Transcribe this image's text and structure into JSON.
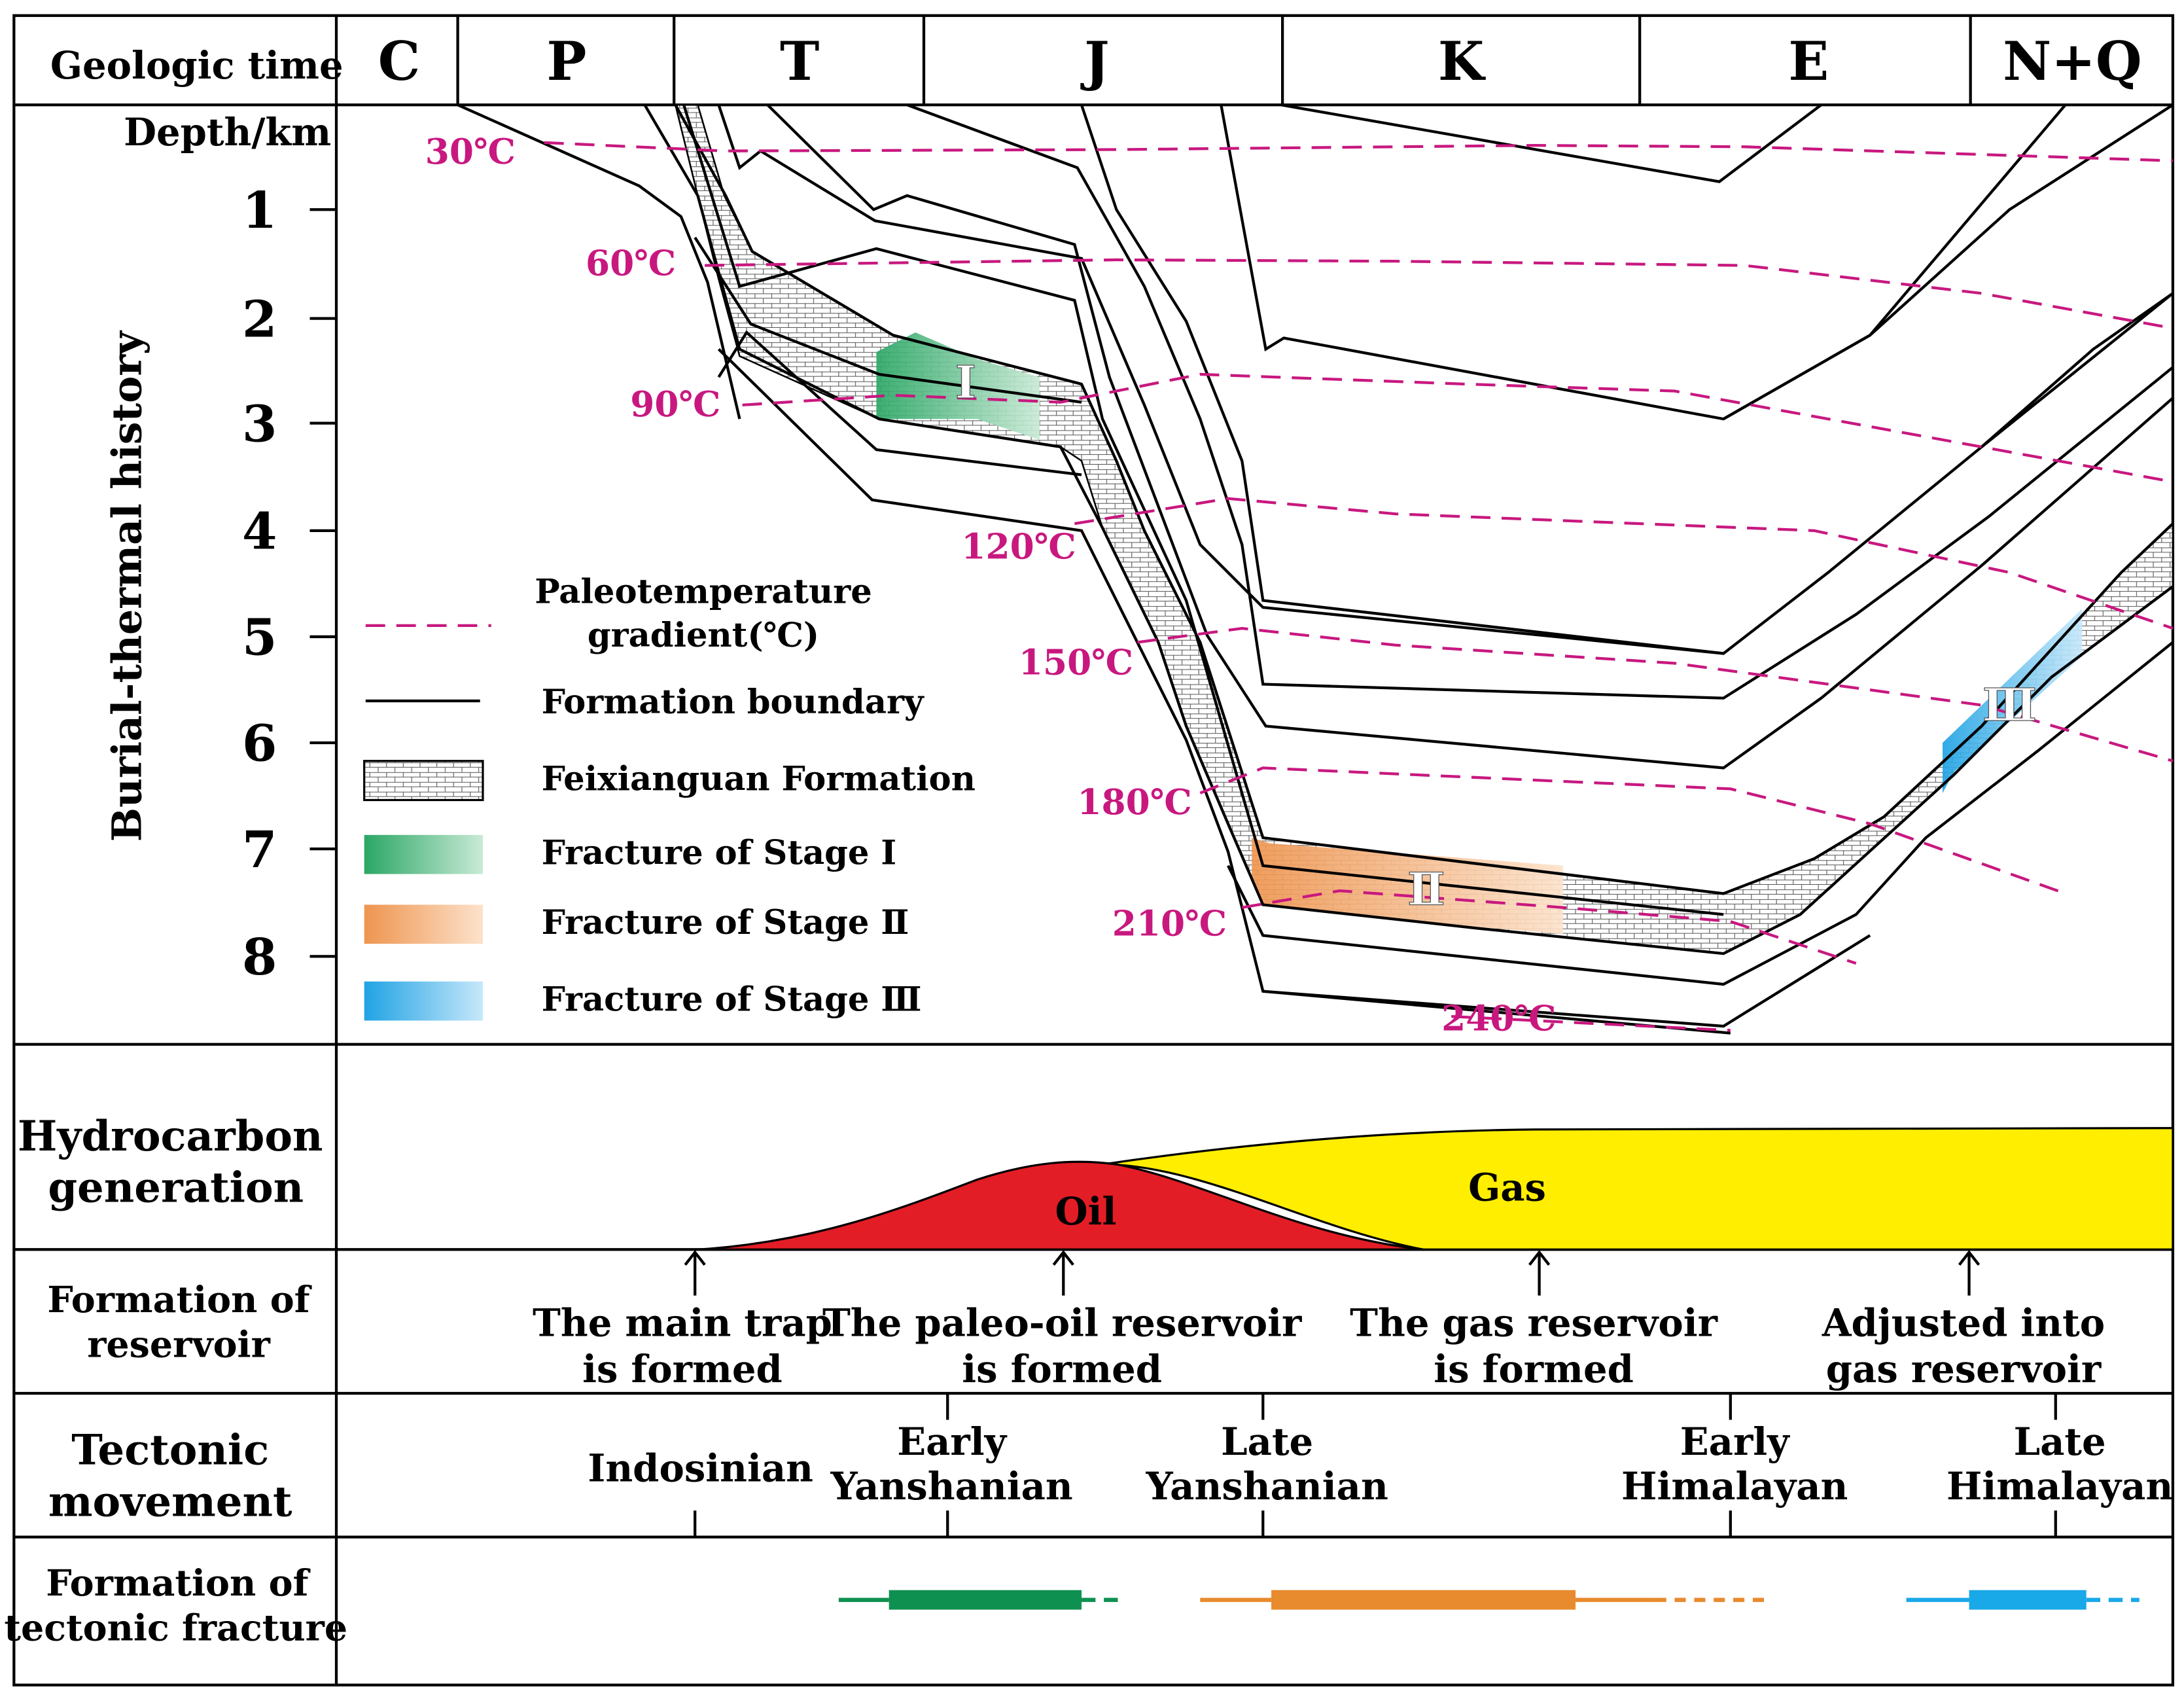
{
  "header": {
    "geologic_time_label": "Geologic time",
    "periods": [
      "C",
      "P",
      "T",
      "J",
      "K",
      "E",
      "N+Q"
    ]
  },
  "burial": {
    "row_label": "Burial-thermal history",
    "depth_label": "Depth/km",
    "depth_ticks": [
      "1",
      "2",
      "3",
      "4",
      "5",
      "6",
      "7",
      "8"
    ],
    "isotherms": [
      "30℃",
      "60℃",
      "90℃",
      "120℃",
      "150℃",
      "180℃",
      "210℃",
      "240℃"
    ],
    "stage_labels": [
      "Ⅰ",
      "Ⅱ",
      "Ⅲ"
    ]
  },
  "legend": {
    "paleotemp_line1": "Paleotemperature",
    "paleotemp_line2": "gradient(℃)",
    "formation_boundary": "Formation boundary",
    "feixianguan": "Feixianguan Formation",
    "stage1": "Fracture of Stage Ⅰ",
    "stage2": "Fracture of Stage Ⅱ",
    "stage3": "Fracture of Stage Ⅲ"
  },
  "hydrocarbon": {
    "label_line1": "Hydrocarbon",
    "label_line2": "generation",
    "oil": "Oil",
    "gas": "Gas"
  },
  "reservoir": {
    "label_line1": "Formation of",
    "label_line2": "reservoir",
    "events": [
      {
        "line1": "The main trap",
        "line2": "is formed"
      },
      {
        "line1": "The paleo-oil reservoir",
        "line2": "is formed"
      },
      {
        "line1": "The gas reservoir",
        "line2": "is formed"
      },
      {
        "line1": "Adjusted into",
        "line2": "gas reservoir"
      }
    ]
  },
  "tectonic": {
    "label_line1": "Tectonic",
    "label_line2": "movement",
    "events": [
      {
        "line1": "Indosinian",
        "line2": ""
      },
      {
        "line1": "Early",
        "line2": "Yanshanian"
      },
      {
        "line1": "Late",
        "line2": "Yanshanian"
      },
      {
        "line1": "Early",
        "line2": "Himalayan"
      },
      {
        "line1": "Late",
        "line2": "Himalayan"
      }
    ]
  },
  "fracture": {
    "label_line1": "Formation of",
    "label_line2": "tectonic fracture"
  },
  "colors": {
    "isotherm": "#c8187f",
    "stage1": "#0e9050",
    "stage2": "#e88a2e",
    "stage3": "#19a8e8",
    "oil": "#e21d26",
    "gas": "#ffee00"
  }
}
